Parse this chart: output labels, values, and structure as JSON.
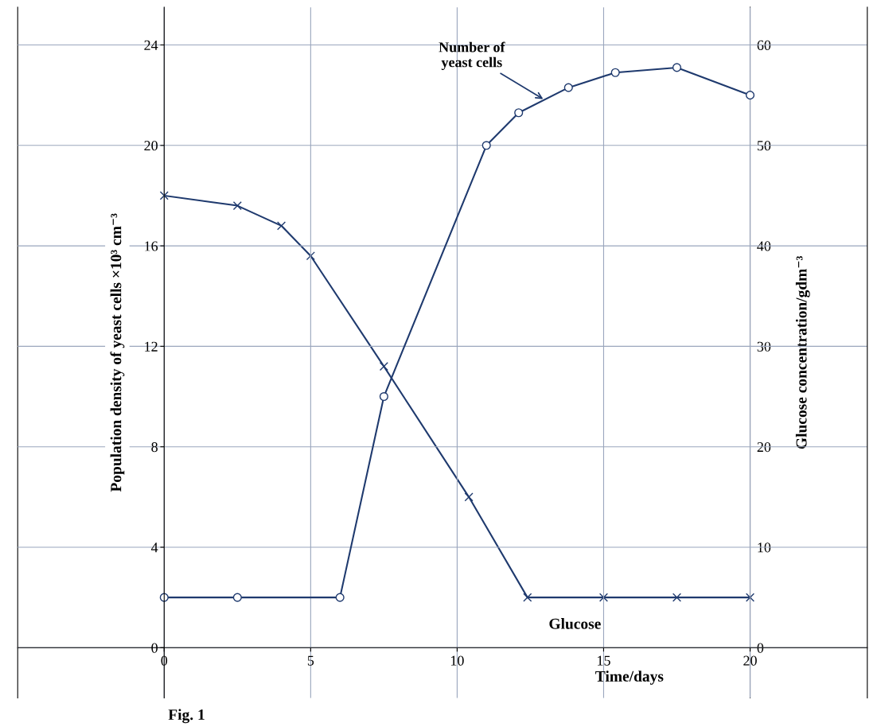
{
  "chart_data": {
    "type": "line",
    "xlabel": "Time/days",
    "ylabel": "Population density of yeast cells ×10³ cm⁻³",
    "y2label": "Glucose concentration/gdm⁻³",
    "xlim": [
      -5,
      24
    ],
    "xticks": [
      0,
      5,
      10,
      15,
      20
    ],
    "ylim": [
      -2,
      25.5
    ],
    "yticks": [
      0,
      4,
      8,
      12,
      16,
      20,
      24
    ],
    "y2lim": [
      -5,
      63.75
    ],
    "y2ticks": [
      0,
      10,
      20,
      30,
      40,
      50,
      60
    ],
    "grid": true,
    "line_style": "solid",
    "series": [
      {
        "color": "#1f3a6e",
        "marker": "circle",
        "x": [
          0,
          2.5,
          6,
          7.5,
          11,
          12.1,
          13.8,
          15.4,
          17.5,
          20
        ],
        "values": [
          2,
          2,
          2,
          10,
          20,
          21.3,
          22.3,
          22.9,
          23.1,
          22
        ]
      },
      {
        "color": "#1f3a6e",
        "marker": "cross",
        "axis": "y2",
        "x": [
          0,
          2.5,
          4,
          5,
          7.5,
          10.4,
          12.4,
          15,
          17.5,
          20
        ],
        "values": [
          45,
          44,
          42,
          39,
          28,
          15,
          5,
          5,
          5,
          5
        ]
      }
    ],
    "annotations": [
      {
        "text": "Number of\nyeast cells",
        "x": 13,
        "y": 21.8
      },
      "Glucose",
      "Fig. 1"
    ]
  }
}
